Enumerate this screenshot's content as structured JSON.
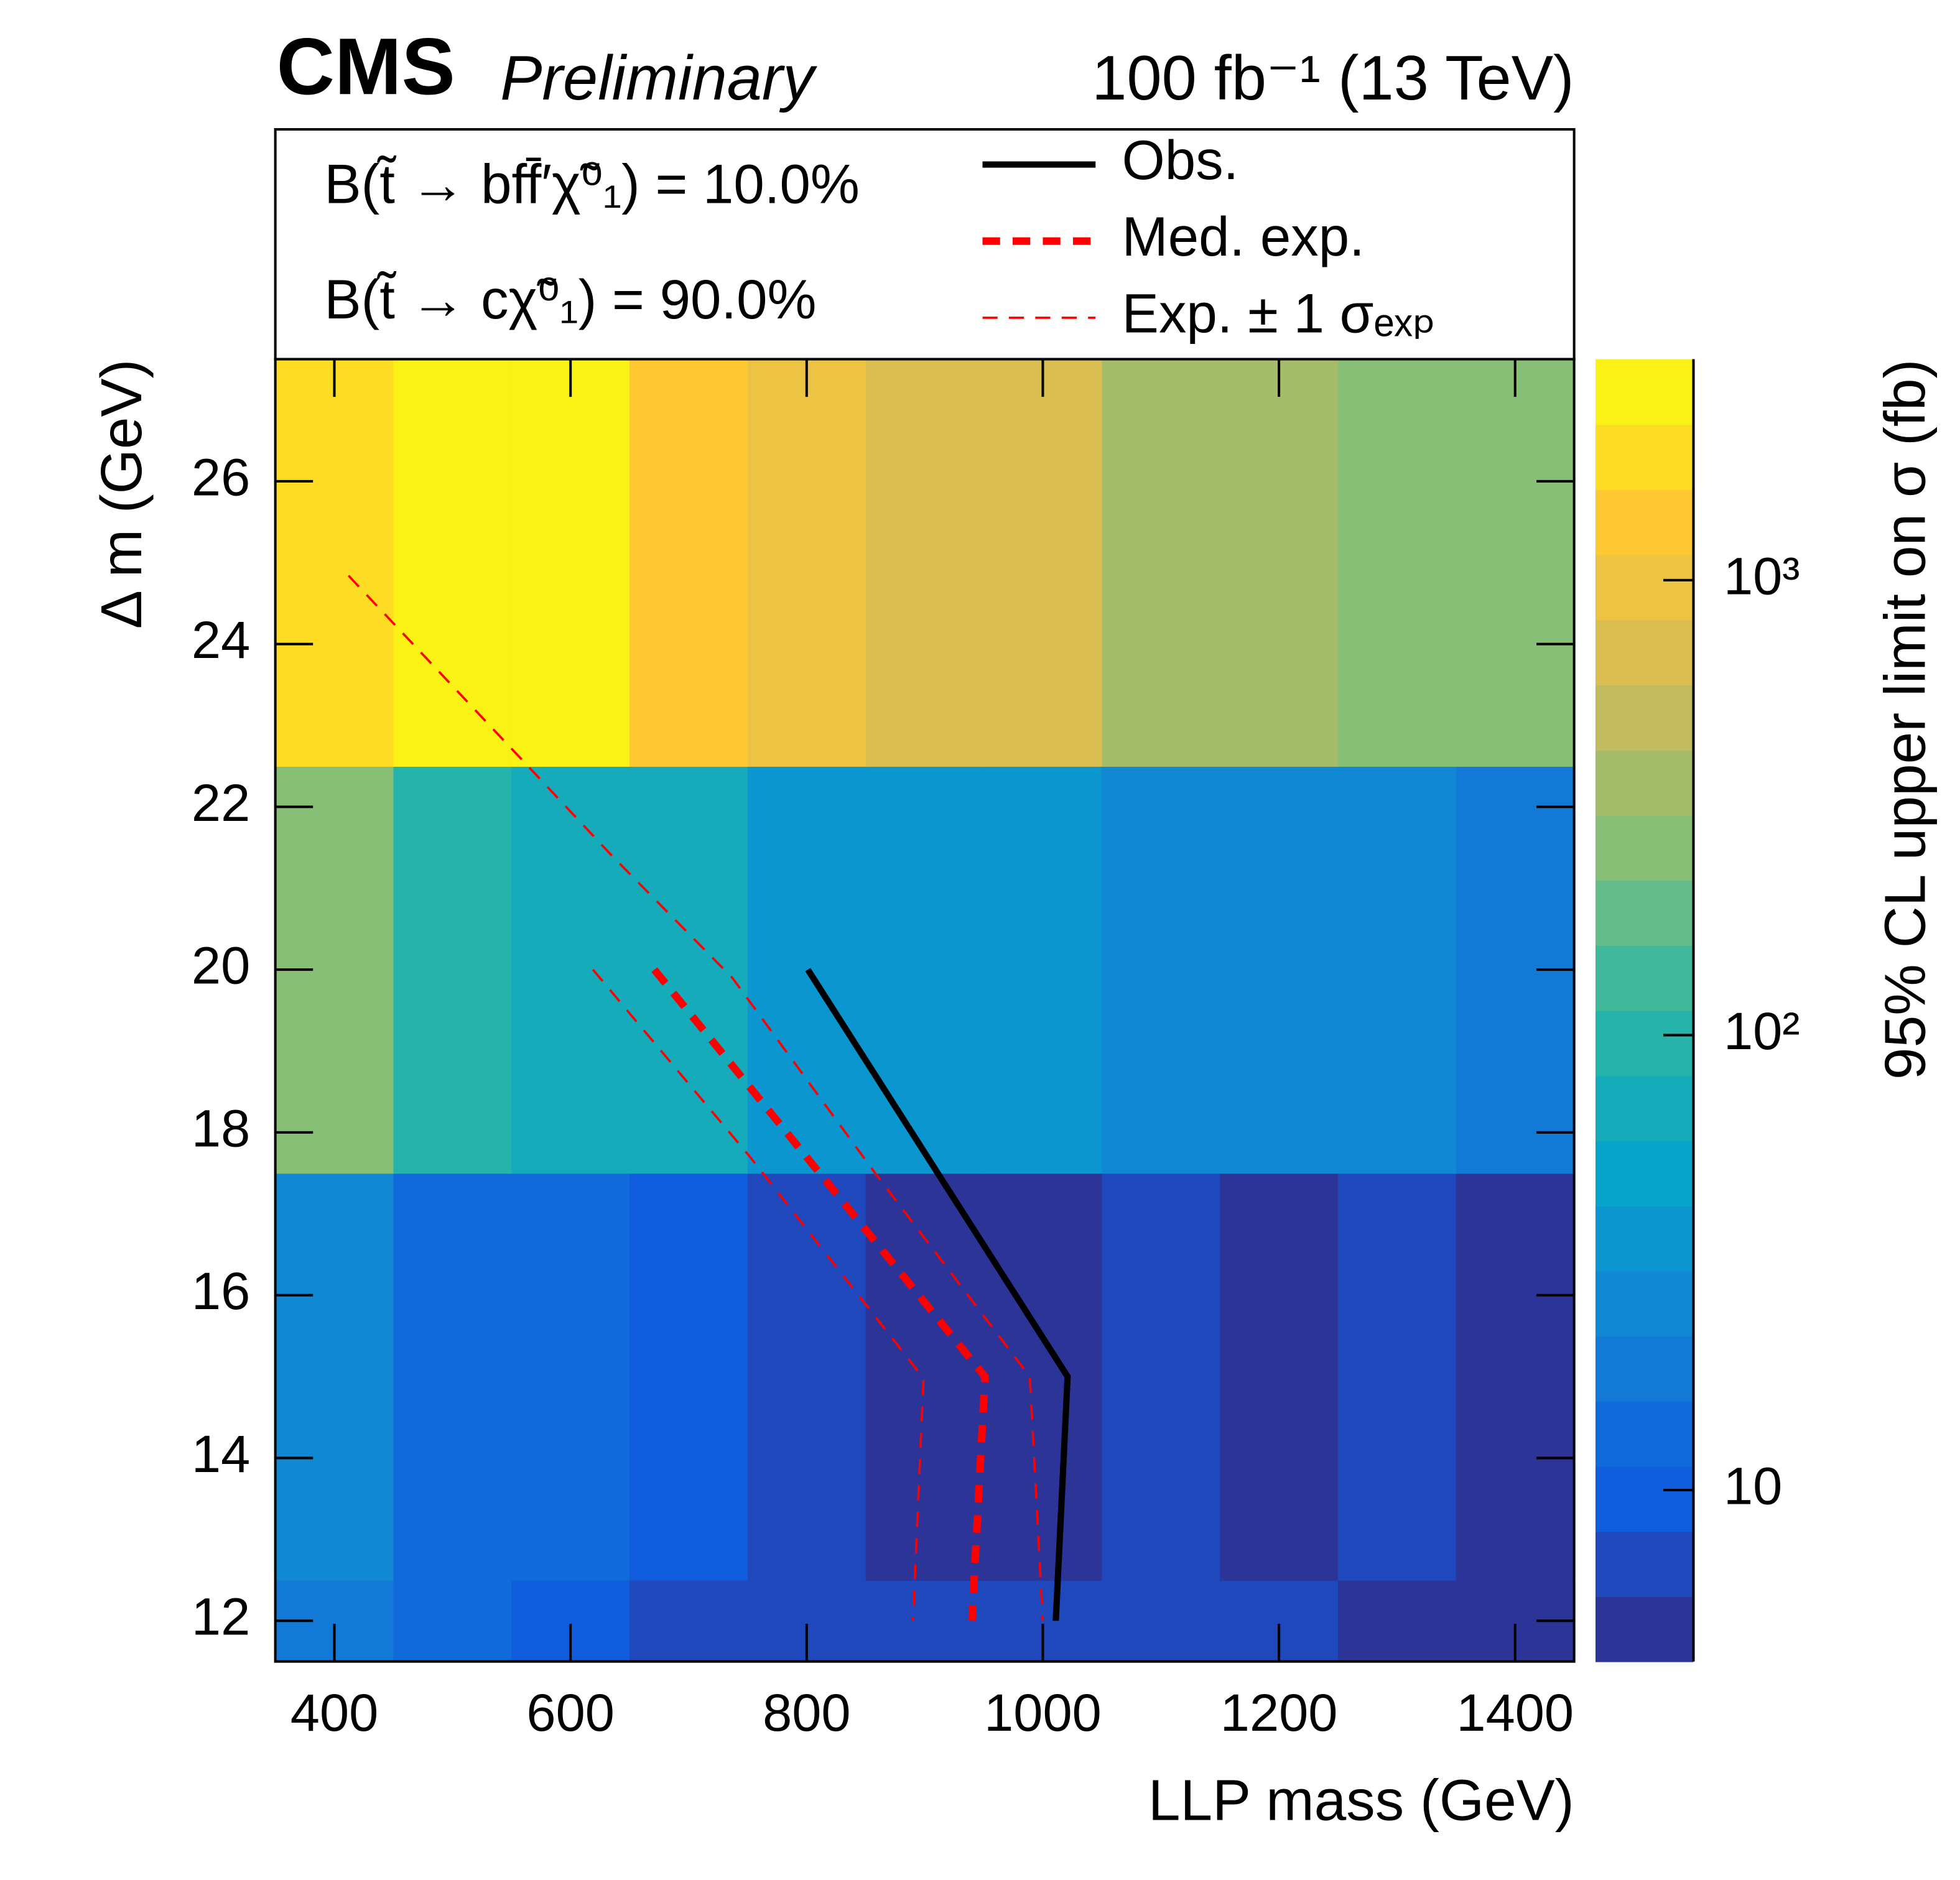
{
  "chart_data": {
    "type": "heatmap",
    "title": "CMS",
    "subtitle": "Preliminary",
    "lumi_label": "100 fb⁻¹ (13 TeV)",
    "annotations": [
      "B(t̃ → bff̄′χ̃⁰₁) = 10.0%",
      "B(t̃ → cχ̃⁰₁) = 90.0%"
    ],
    "x_label": "LLP mass (GeV)",
    "y_label": "Δ m (GeV)",
    "colorbar_label": "95% CL upper limit on σ (fb)",
    "x_edges": [
      350,
      450,
      550,
      650,
      750,
      850,
      950,
      1050,
      1150,
      1250,
      1350,
      1450
    ],
    "y_edges": [
      11.5,
      12.5,
      17.5,
      22.5,
      27.5
    ],
    "z": [
      [
        20,
        15,
        10,
        7,
        7,
        7,
        7,
        8,
        8,
        5,
        5
      ],
      [
        25,
        15,
        12,
        10,
        7,
        5,
        5,
        7,
        5,
        7,
        5
      ],
      [
        250,
        100,
        80,
        80,
        40,
        40,
        40,
        30,
        25,
        25,
        20
      ],
      [
        1800,
        3000,
        3000,
        1500,
        1000,
        700,
        700,
        400,
        400,
        250,
        250
      ]
    ],
    "xlim": [
      350,
      1450
    ],
    "ylim": [
      11.5,
      27.5
    ],
    "xticks": [
      400,
      600,
      800,
      1000,
      1200,
      1400
    ],
    "yticks": [
      12,
      14,
      16,
      18,
      20,
      22,
      24,
      26
    ],
    "zlim": [
      4.2,
      3060
    ],
    "zticks": [
      10,
      {
        "value": 100,
        "label": "10²"
      },
      {
        "value": 1000,
        "label": "10³"
      }
    ],
    "zscale": "log",
    "colormap": "bird",
    "levels": 20,
    "series": [
      {
        "name": "Obs.",
        "color": "#000000",
        "width": 5,
        "dash": "solid",
        "x": [
          801,
          1021,
          1011
        ],
        "y": [
          20,
          15,
          12
        ]
      },
      {
        "name": "Med. exp.",
        "color": "#ff0000",
        "width": 6,
        "dash": "dashed",
        "x": [
          671,
          951,
          940
        ],
        "y": [
          20,
          15,
          12
        ]
      },
      {
        "name": "Exp. ± 1 σₑₓₚ",
        "color": "#ff0000",
        "width": 1.8,
        "dash": "dashed",
        "x": [
          412,
          564,
          635,
          737,
          858,
          989,
          1000,
          null,
          619,
          752,
          899,
          890
        ],
        "y": [
          24.84,
          22.5,
          21.4,
          19.9,
          17.5,
          15.0,
          12.0,
          null,
          20.0,
          17.7,
          14.98,
          12.0
        ]
      }
    ]
  }
}
